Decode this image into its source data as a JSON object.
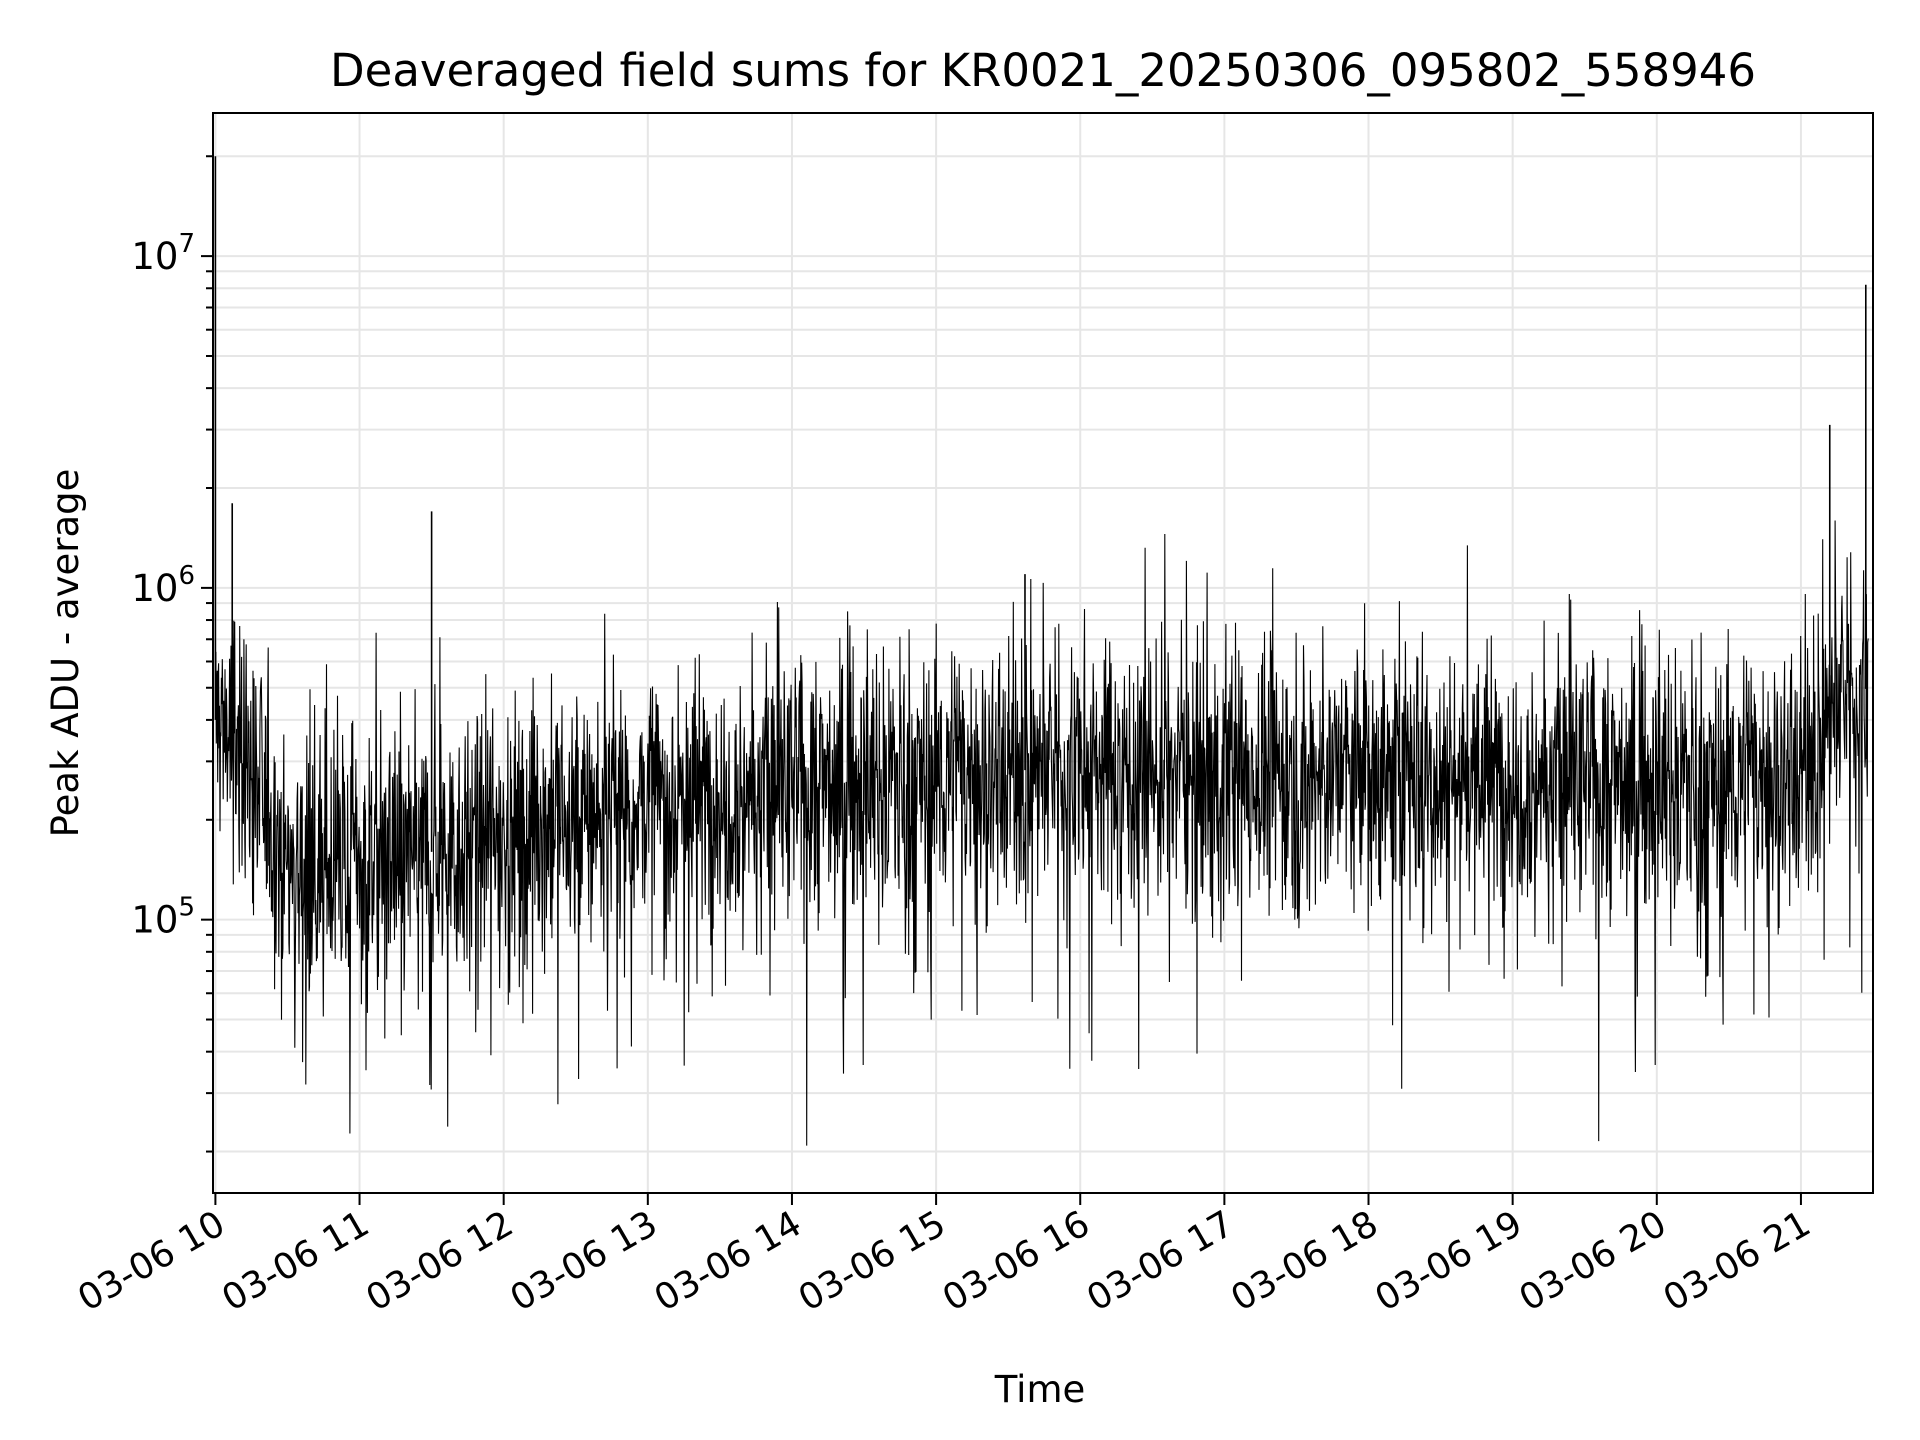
{
  "chart_data": {
    "type": "line",
    "title": "Deaveraged field sums for KR0021_20250306_095802_558946",
    "xlabel": "Time",
    "ylabel": "Peak ADU - average",
    "y_scale": "log",
    "grid": "on (major and minor)",
    "line_color": "#000000",
    "grid_color": "#e6e6e6",
    "xlim": [
      "2025-03-06T09:59",
      "2025-03-06T21:30"
    ],
    "ylim": [
      15000,
      27000000
    ],
    "x_ticks": [
      {
        "t": "2025-03-06T10:00",
        "label": "03-06 10"
      },
      {
        "t": "2025-03-06T11:00",
        "label": "03-06 11"
      },
      {
        "t": "2025-03-06T12:00",
        "label": "03-06 12"
      },
      {
        "t": "2025-03-06T13:00",
        "label": "03-06 13"
      },
      {
        "t": "2025-03-06T14:00",
        "label": "03-06 14"
      },
      {
        "t": "2025-03-06T15:00",
        "label": "03-06 15"
      },
      {
        "t": "2025-03-06T16:00",
        "label": "03-06 16"
      },
      {
        "t": "2025-03-06T17:00",
        "label": "03-06 17"
      },
      {
        "t": "2025-03-06T18:00",
        "label": "03-06 18"
      },
      {
        "t": "2025-03-06T19:00",
        "label": "03-06 19"
      },
      {
        "t": "2025-03-06T20:00",
        "label": "03-06 20"
      },
      {
        "t": "2025-03-06T21:00",
        "label": "03-06 21"
      }
    ],
    "y_ticks": [
      {
        "value": 100000,
        "base": "10",
        "exp": "5"
      },
      {
        "value": 1000000,
        "base": "10",
        "exp": "6"
      },
      {
        "value": 10000000,
        "base": "10",
        "exp": "7"
      }
    ],
    "x": [
      "2025-03-06T10:00",
      "2025-03-06T10:05",
      "2025-03-06T10:15",
      "2025-03-06T10:30",
      "2025-03-06T10:45",
      "2025-03-06T11:00",
      "2025-03-06T11:30",
      "2025-03-06T12:00",
      "2025-03-06T12:30",
      "2025-03-06T13:00",
      "2025-03-06T13:30",
      "2025-03-06T14:00",
      "2025-03-06T14:30",
      "2025-03-06T15:00",
      "2025-03-06T15:30",
      "2025-03-06T16:00",
      "2025-03-06T16:30",
      "2025-03-06T17:00",
      "2025-03-06T17:30",
      "2025-03-06T18:00",
      "2025-03-06T18:30",
      "2025-03-06T19:00",
      "2025-03-06T19:30",
      "2025-03-06T20:00",
      "2025-03-06T20:30",
      "2025-03-06T21:00",
      "2025-03-06T21:15",
      "2025-03-06T21:28"
    ],
    "series": [
      {
        "values": [
          400000,
          380000,
          280000,
          150000,
          140000,
          150000,
          160000,
          180000,
          200000,
          230000,
          240000,
          250000,
          260000,
          270000,
          280000,
          290000,
          280000,
          280000,
          270000,
          280000,
          270000,
          270000,
          260000,
          260000,
          260000,
          280000,
          450000,
          500000
        ]
      }
    ],
    "spikes": [
      {
        "t": "2025-03-06T10:00",
        "value": 20000000
      },
      {
        "t": "2025-03-06T10:07",
        "value": 1800000
      },
      {
        "t": "2025-03-06T11:30",
        "value": 1700000
      },
      {
        "t": "2025-03-06T15:37",
        "value": 1100000
      },
      {
        "t": "2025-03-06T21:12",
        "value": 3100000
      },
      {
        "t": "2025-03-06T21:27",
        "value": 8200000
      }
    ]
  }
}
